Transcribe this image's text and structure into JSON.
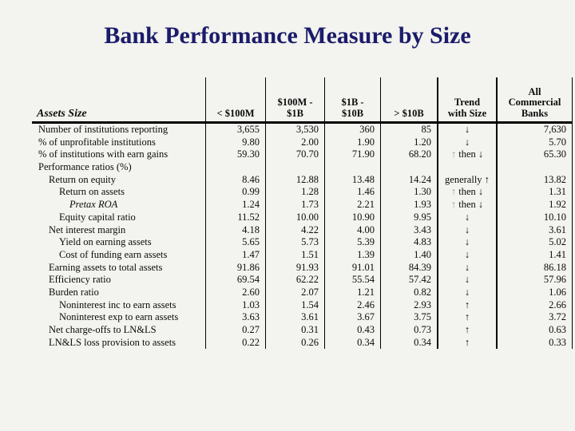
{
  "page": {
    "title": "Bank Performance Measure by Size",
    "title_color": "#1b1b6b",
    "background": "#f3f3ef"
  },
  "table": {
    "corner_label": "Assets Size",
    "columns": [
      "< $100M",
      "$100M -\n$1B",
      "$1B -\n$10B",
      "> $10B",
      "Trend\nwith Size",
      "All\nCommercial\nBanks"
    ],
    "trend_gray_arrow_color": "#9a9a9a",
    "rows": [
      {
        "label": "Number of institutions reporting",
        "indent": 0,
        "italic": false,
        "cells": [
          "3,655",
          "3,530",
          "360",
          "85",
          "↓",
          "7,630"
        ]
      },
      {
        "label": "% of unprofitable institutions",
        "indent": 0,
        "italic": false,
        "cells": [
          "9.80",
          "2.00",
          "1.90",
          "1.20",
          "↓",
          "5.70"
        ]
      },
      {
        "label": "% of institutions with earn gains",
        "indent": 0,
        "italic": false,
        "cells": [
          "59.30",
          "70.70",
          "71.90",
          "68.20",
          "↑ then ↓",
          "65.30"
        ]
      },
      {
        "label": "Performance ratios (%)",
        "indent": 0,
        "italic": false,
        "cells": [
          "",
          "",
          "",
          "",
          "",
          ""
        ]
      },
      {
        "label": "Return on equity",
        "indent": 1,
        "italic": false,
        "cells": [
          "8.46",
          "12.88",
          "13.48",
          "14.24",
          "generally ↑",
          "13.82"
        ]
      },
      {
        "label": "Return on assets",
        "indent": 2,
        "italic": false,
        "cells": [
          "0.99",
          "1.28",
          "1.46",
          "1.30",
          "↑ then ↓",
          "1.31"
        ]
      },
      {
        "label": "Pretax ROA",
        "indent": 3,
        "italic": true,
        "cells": [
          "1.24",
          "1.73",
          "2.21",
          "1.93",
          "↑ then ↓",
          "1.92"
        ]
      },
      {
        "label": "Equity capital ratio",
        "indent": 2,
        "italic": false,
        "cells": [
          "11.52",
          "10.00",
          "10.90",
          "9.95",
          "↓",
          "10.10"
        ]
      },
      {
        "label": "Net interest margin",
        "indent": 1,
        "italic": false,
        "cells": [
          "4.18",
          "4.22",
          "4.00",
          "3.43",
          "↓",
          "3.61"
        ]
      },
      {
        "label": "Yield on earning assets",
        "indent": 2,
        "italic": false,
        "cells": [
          "5.65",
          "5.73",
          "5.39",
          "4.83",
          "↓",
          "5.02"
        ]
      },
      {
        "label": "Cost of funding earn assets",
        "indent": 2,
        "italic": false,
        "cells": [
          "1.47",
          "1.51",
          "1.39",
          "1.40",
          "↓",
          "1.41"
        ]
      },
      {
        "label": "Earning assets to total assets",
        "indent": 1,
        "italic": false,
        "cells": [
          "91.86",
          "91.93",
          "91.01",
          "84.39",
          "↓",
          "86.18"
        ]
      },
      {
        "label": "Efficiency ratio",
        "indent": 1,
        "italic": false,
        "cells": [
          "69.54",
          "62.22",
          "55.54",
          "57.42",
          "↓",
          "57.96"
        ]
      },
      {
        "label": "Burden ratio",
        "indent": 1,
        "italic": false,
        "cells": [
          "2.60",
          "2.07",
          "1.21",
          "0.82",
          "↓",
          "1.06"
        ]
      },
      {
        "label": "Noninterest inc to earn assets",
        "indent": 2,
        "italic": false,
        "cells": [
          "1.03",
          "1.54",
          "2.46",
          "2.93",
          "↑",
          "2.66"
        ]
      },
      {
        "label": "Noninterest exp to earn assets",
        "indent": 2,
        "italic": false,
        "cells": [
          "3.63",
          "3.61",
          "3.67",
          "3.75",
          "↑",
          "3.72"
        ]
      },
      {
        "label": "Net charge-offs to LN&LS",
        "indent": 1,
        "italic": false,
        "cells": [
          "0.27",
          "0.31",
          "0.43",
          "0.73",
          "↑",
          "0.63"
        ]
      },
      {
        "label": "LN&LS loss provision to assets",
        "indent": 1,
        "italic": false,
        "cells": [
          "0.22",
          "0.26",
          "0.34",
          "0.34",
          "↑",
          "0.33"
        ]
      }
    ]
  }
}
